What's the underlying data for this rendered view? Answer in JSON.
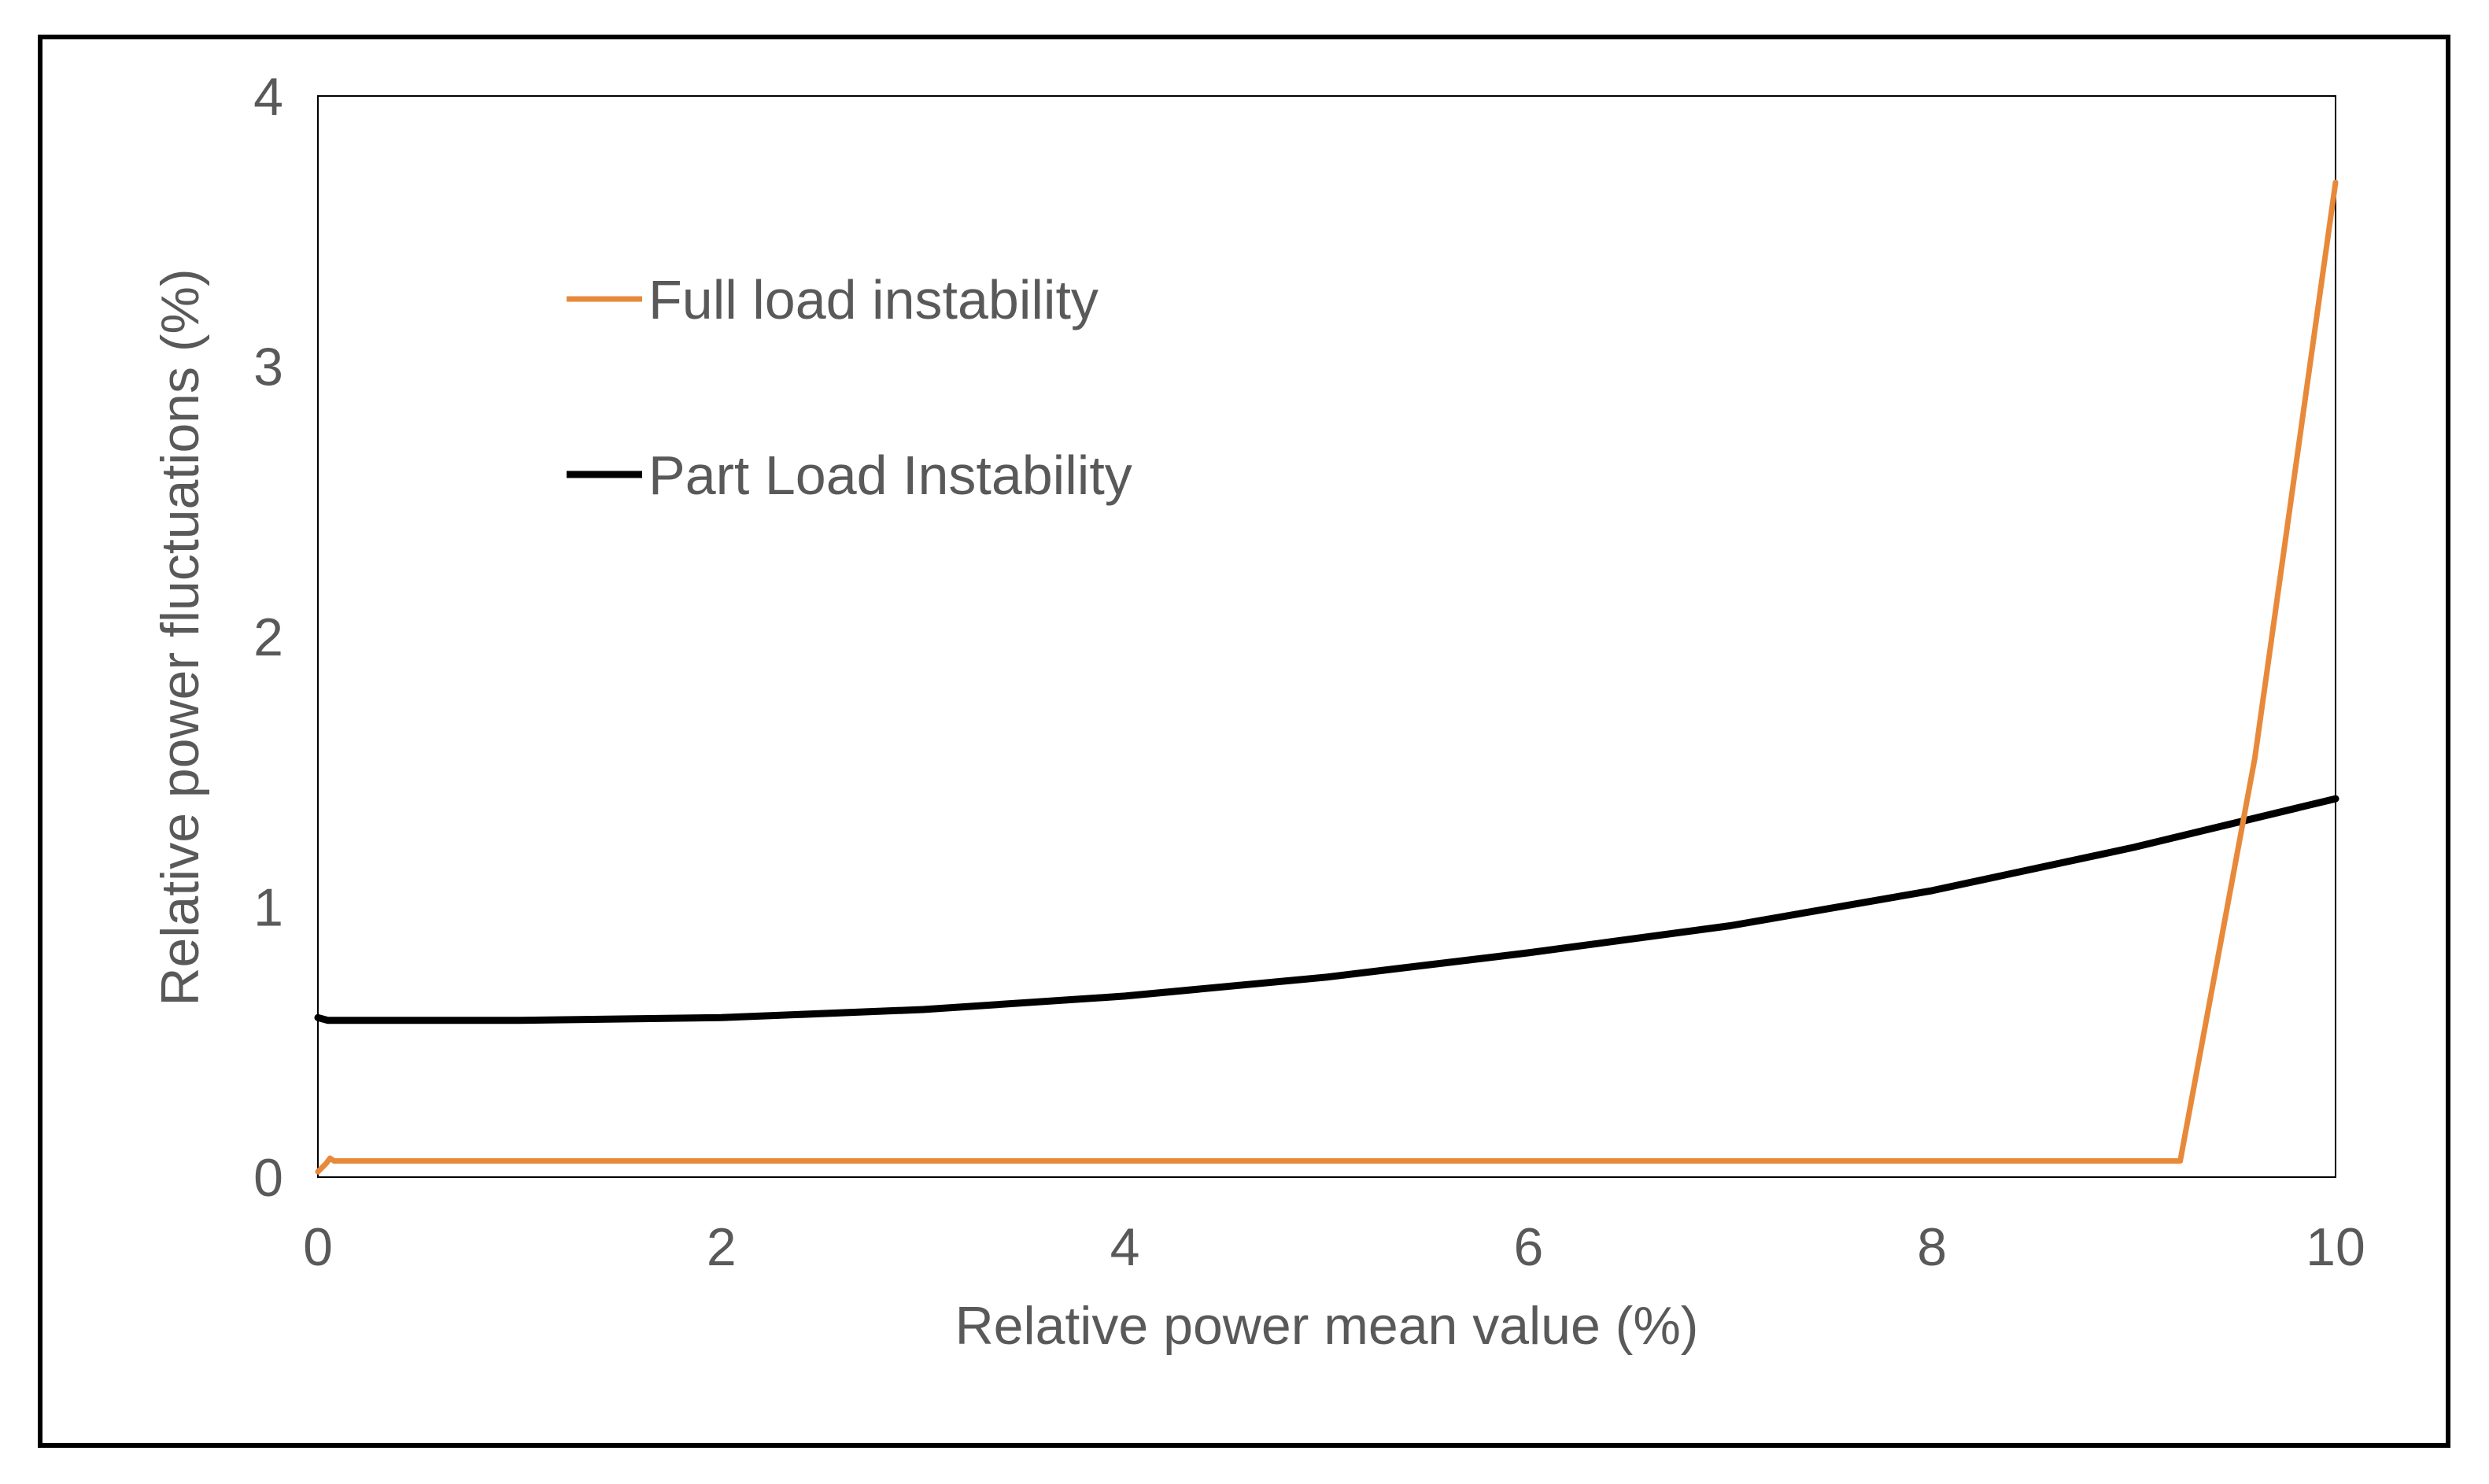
{
  "chart_data": {
    "type": "line",
    "title": "",
    "xlabel": "Relative power mean value (%)",
    "ylabel": "Relative power fluctuations (%)",
    "xlim": [
      0,
      10
    ],
    "ylim": [
      0,
      4
    ],
    "xticks": [
      "0",
      "2",
      "4",
      "6",
      "8",
      "10"
    ],
    "yticks": [
      "0",
      "1",
      "2",
      "3",
      "4"
    ],
    "grid": false,
    "legend_position": "top-left",
    "series": [
      {
        "name": "Full load instability",
        "color": "#E8893A",
        "points": [
          [
            0.0,
            0.02
          ],
          [
            0.04,
            0.05
          ],
          [
            0.06,
            0.07
          ],
          [
            0.08,
            0.06
          ],
          [
            0.5,
            0.06
          ],
          [
            2.0,
            0.06
          ],
          [
            4.0,
            0.06
          ],
          [
            6.0,
            0.06
          ],
          [
            8.0,
            0.06
          ],
          [
            9.23,
            0.06
          ],
          [
            9.6,
            1.55
          ],
          [
            10.0,
            3.68
          ]
        ]
      },
      {
        "name": "Part Load Instability",
        "color": "#000000",
        "points": [
          [
            0.0,
            0.59
          ],
          [
            0.05,
            0.58
          ],
          [
            1.0,
            0.58
          ],
          [
            2.0,
            0.59
          ],
          [
            3.0,
            0.62
          ],
          [
            4.0,
            0.67
          ],
          [
            5.0,
            0.74
          ],
          [
            6.0,
            0.83
          ],
          [
            7.0,
            0.93
          ],
          [
            8.0,
            1.06
          ],
          [
            9.0,
            1.22
          ],
          [
            10.0,
            1.4
          ]
        ]
      }
    ]
  }
}
